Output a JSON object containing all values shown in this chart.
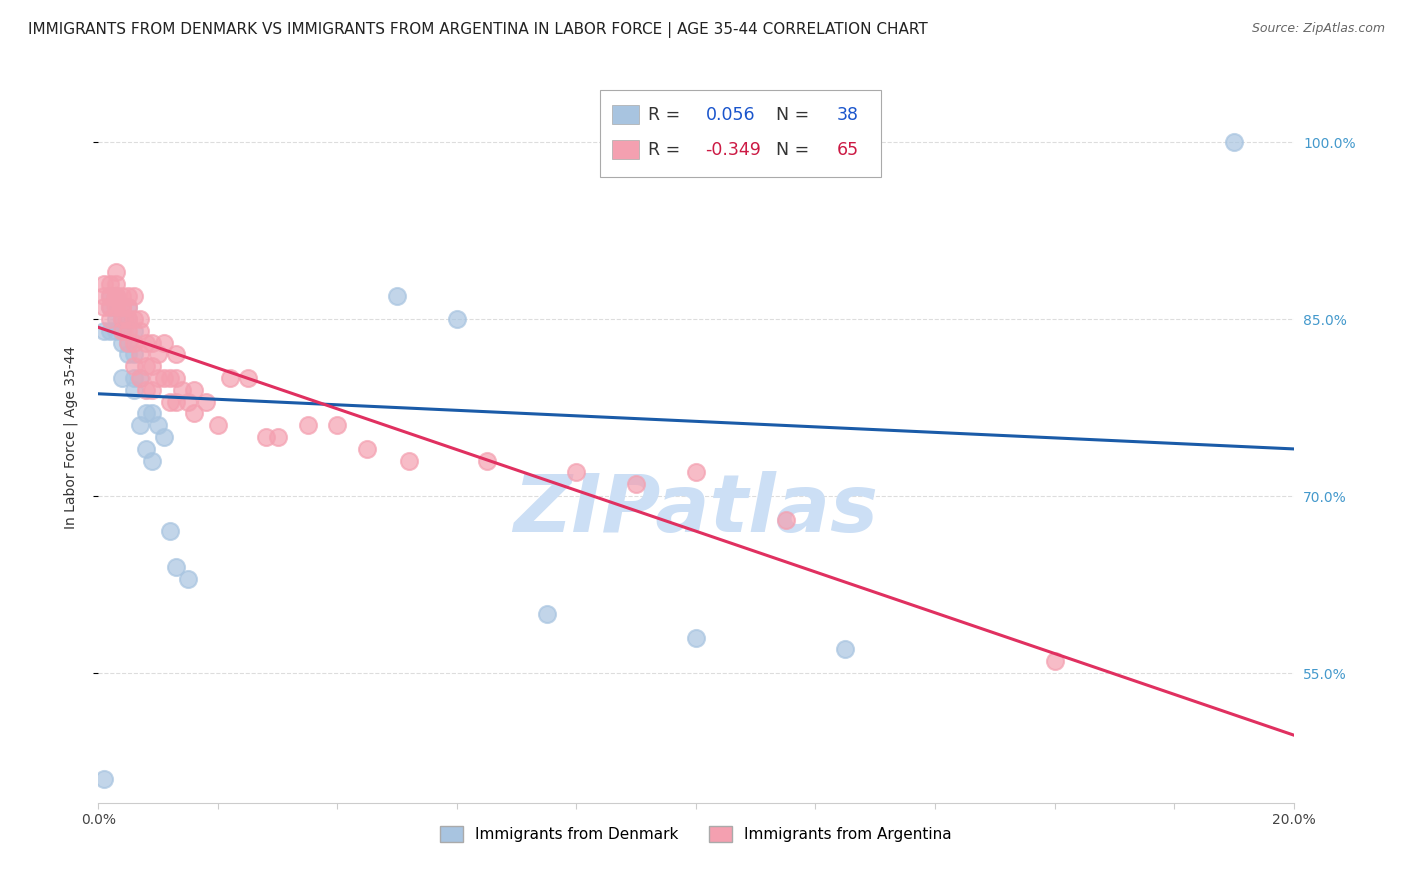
{
  "title": "IMMIGRANTS FROM DENMARK VS IMMIGRANTS FROM ARGENTINA IN LABOR FORCE | AGE 35-44 CORRELATION CHART",
  "source": "Source: ZipAtlas.com",
  "ylabel": "In Labor Force | Age 35-44",
  "xlim": [
    0.0,
    0.2
  ],
  "ylim": [
    0.44,
    1.06
  ],
  "yticks": [
    0.55,
    0.7,
    0.85,
    1.0
  ],
  "ytick_labels": [
    "55.0%",
    "70.0%",
    "85.0%",
    "100.0%"
  ],
  "xticks": [
    0.0,
    0.02,
    0.04,
    0.06,
    0.08,
    0.1,
    0.12,
    0.14,
    0.16,
    0.18,
    0.2
  ],
  "xtick_labels": [
    "0.0%",
    "",
    "",
    "",
    "",
    "",
    "",
    "",
    "",
    "",
    "20.0%"
  ],
  "denmark_color": "#a8c4e0",
  "argentina_color": "#f4a0b0",
  "denmark_R": 0.056,
  "denmark_N": 38,
  "argentina_R": -0.349,
  "argentina_N": 65,
  "trend_denmark_color": "#1a5ba8",
  "trend_argentina_color": "#e03060",
  "watermark": "ZIPatlas",
  "watermark_color": "#ccdff5",
  "denmark_x": [
    0.001,
    0.001,
    0.002,
    0.002,
    0.002,
    0.003,
    0.003,
    0.003,
    0.003,
    0.004,
    0.004,
    0.004,
    0.004,
    0.005,
    0.005,
    0.005,
    0.005,
    0.006,
    0.006,
    0.006,
    0.006,
    0.007,
    0.007,
    0.008,
    0.008,
    0.009,
    0.009,
    0.01,
    0.011,
    0.012,
    0.013,
    0.015,
    0.05,
    0.06,
    0.075,
    0.1,
    0.125,
    0.19
  ],
  "denmark_y": [
    0.46,
    0.84,
    0.87,
    0.86,
    0.84,
    0.87,
    0.86,
    0.85,
    0.84,
    0.85,
    0.84,
    0.83,
    0.8,
    0.86,
    0.85,
    0.83,
    0.82,
    0.84,
    0.82,
    0.8,
    0.79,
    0.8,
    0.76,
    0.77,
    0.74,
    0.77,
    0.73,
    0.76,
    0.75,
    0.67,
    0.64,
    0.63,
    0.87,
    0.85,
    0.6,
    0.58,
    0.57,
    1.0
  ],
  "argentina_x": [
    0.001,
    0.001,
    0.001,
    0.002,
    0.002,
    0.002,
    0.002,
    0.003,
    0.003,
    0.003,
    0.003,
    0.003,
    0.004,
    0.004,
    0.004,
    0.004,
    0.004,
    0.005,
    0.005,
    0.005,
    0.005,
    0.005,
    0.006,
    0.006,
    0.006,
    0.006,
    0.007,
    0.007,
    0.007,
    0.007,
    0.008,
    0.008,
    0.008,
    0.009,
    0.009,
    0.009,
    0.01,
    0.01,
    0.011,
    0.011,
    0.012,
    0.012,
    0.013,
    0.013,
    0.013,
    0.014,
    0.015,
    0.016,
    0.016,
    0.018,
    0.02,
    0.022,
    0.025,
    0.028,
    0.03,
    0.035,
    0.04,
    0.045,
    0.052,
    0.065,
    0.08,
    0.09,
    0.1,
    0.115,
    0.16
  ],
  "argentina_y": [
    0.88,
    0.87,
    0.86,
    0.88,
    0.87,
    0.86,
    0.85,
    0.89,
    0.88,
    0.87,
    0.87,
    0.86,
    0.87,
    0.86,
    0.86,
    0.85,
    0.84,
    0.87,
    0.86,
    0.85,
    0.84,
    0.83,
    0.87,
    0.85,
    0.83,
    0.81,
    0.85,
    0.84,
    0.82,
    0.8,
    0.83,
    0.81,
    0.79,
    0.83,
    0.81,
    0.79,
    0.82,
    0.8,
    0.83,
    0.8,
    0.8,
    0.78,
    0.82,
    0.8,
    0.78,
    0.79,
    0.78,
    0.79,
    0.77,
    0.78,
    0.76,
    0.8,
    0.8,
    0.75,
    0.75,
    0.76,
    0.76,
    0.74,
    0.73,
    0.73,
    0.72,
    0.71,
    0.72,
    0.68,
    0.56
  ],
  "background_color": "#ffffff",
  "grid_color": "#dddddd",
  "right_axis_color": "#4499cc",
  "title_fontsize": 11,
  "source_fontsize": 9,
  "axis_label_fontsize": 10,
  "tick_fontsize": 10
}
